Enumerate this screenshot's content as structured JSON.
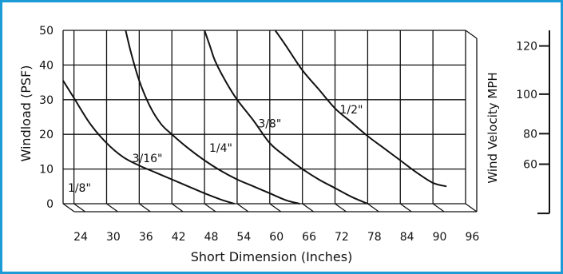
{
  "chart_data": {
    "type": "line",
    "xlabel": "Short Dimension (Inches)",
    "ylabel": "Windload (PSF)",
    "y2label": "Wind Velocity MPH",
    "xlim": [
      22,
      96
    ],
    "ylim": [
      0,
      50
    ],
    "x_ticks": [
      "24",
      "30",
      "36",
      "42",
      "48",
      "54",
      "60",
      "66",
      "72",
      "78",
      "84",
      "90",
      "96"
    ],
    "y_ticks": [
      "0",
      "10",
      "20",
      "30",
      "40",
      "50"
    ],
    "y2_ticks": [
      {
        "label": "120",
        "psf": 45.5
      },
      {
        "label": "100",
        "psf": 31.6
      },
      {
        "label": "80",
        "psf": 20.2
      },
      {
        "label": "60",
        "psf": 11.4
      }
    ],
    "grid": true,
    "accent_color": "#1d9bd7",
    "series": [
      {
        "name": "1/8\"",
        "label_at": [
          25,
          3.5
        ],
        "x": [
          22,
          24,
          27,
          30,
          33,
          36,
          39,
          42,
          45,
          48,
          51,
          53.5
        ],
        "y": [
          35.5,
          30.5,
          23,
          17.5,
          13.5,
          11,
          9,
          7,
          5,
          3,
          1.2,
          0
        ]
      },
      {
        "name": "3/16\"",
        "label_at": [
          37.5,
          12
        ],
        "x": [
          33.5,
          34.5,
          36,
          38,
          40,
          42,
          45,
          48,
          51,
          54,
          57,
          60,
          63,
          65.5
        ],
        "y": [
          50,
          43.5,
          35.5,
          28,
          23,
          20,
          16,
          12.5,
          9.5,
          7,
          5,
          3,
          1,
          0
        ]
      },
      {
        "name": "1/4\"",
        "label_at": [
          51,
          15
        ],
        "x": [
          48,
          49,
          50,
          52,
          54,
          57,
          60,
          63,
          66,
          69,
          72,
          75,
          78
        ],
        "y": [
          50,
          45.5,
          41,
          35,
          30,
          24,
          17.5,
          13.5,
          10,
          7,
          4.5,
          2,
          0
        ]
      },
      {
        "name": "3/8\"",
        "label_at": [
          60,
          22
        ],
        "x": [
          61,
          63,
          66,
          69,
          72,
          75,
          78,
          81,
          84,
          87,
          90,
          92.5
        ],
        "y": [
          50,
          45.5,
          38.5,
          33,
          27.5,
          23.5,
          19.5,
          16,
          12.5,
          9,
          6,
          5
        ]
      },
      {
        "name": "1/2\"",
        "label_at": [
          75,
          26
        ],
        "x": [],
        "y": []
      }
    ]
  }
}
